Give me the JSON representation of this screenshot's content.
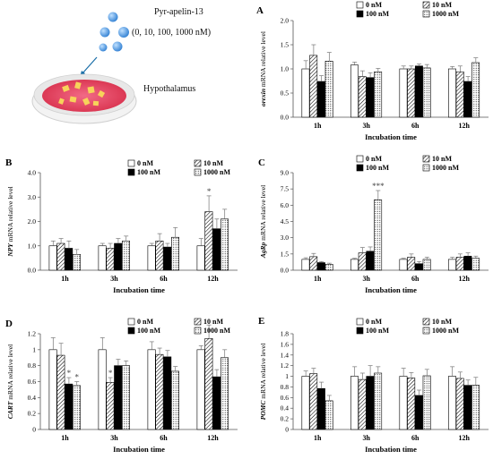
{
  "illustration": {
    "peptide": "Pyr-apelin-13",
    "doses": "(0, 10, 100, 1000 nM)",
    "tissue": "Hypothalamus"
  },
  "legend": [
    "0 nM",
    "10 nM",
    "100 nM",
    "1000 nM"
  ],
  "colors": {
    "bar0": "#ffffff",
    "bar10": "hatch",
    "bar100": "#000000",
    "bar1000": "dotted",
    "sphere": "#5aa2e0",
    "dish": "#e64b6b"
  },
  "chart_data": [
    {
      "panel": "A",
      "type": "bar",
      "gene": "orexin",
      "ylabel_rest": " mRNA relative  level",
      "xlabel": "Incubation time",
      "categories": [
        "1h",
        "3h",
        "6h",
        "12h"
      ],
      "ylim": [
        0,
        2.0
      ],
      "yticks": [
        "0.0",
        "0.5",
        "1.0",
        "1.5",
        "2.0"
      ],
      "series": [
        {
          "name": "0 nM",
          "values": [
            1.0,
            1.08,
            1.0,
            1.0
          ],
          "errors": [
            0.17,
            0.06,
            0.06,
            0.05
          ]
        },
        {
          "name": "10 nM",
          "values": [
            1.28,
            0.84,
            1.0,
            0.94
          ],
          "errors": [
            0.22,
            0.12,
            0.06,
            0.12
          ]
        },
        {
          "name": "100 nM",
          "values": [
            0.74,
            0.82,
            1.06,
            0.74
          ],
          "errors": [
            0.12,
            0.1,
            0.04,
            0.1
          ]
        },
        {
          "name": "1000 nM",
          "values": [
            1.16,
            0.94,
            1.02,
            1.13
          ],
          "errors": [
            0.18,
            0.07,
            0.07,
            0.1
          ]
        }
      ],
      "annotations": []
    },
    {
      "panel": "B",
      "type": "bar",
      "gene": "NPY",
      "ylabel_rest": " mRNA relative  level",
      "xlabel": "Incubation time",
      "categories": [
        "1h",
        "3h",
        "6h",
        "12h"
      ],
      "ylim": [
        0,
        4.0
      ],
      "yticks": [
        "0.0",
        "1.0",
        "2.0",
        "3.0",
        "4.0"
      ],
      "series": [
        {
          "name": "0 nM",
          "values": [
            1.0,
            1.0,
            1.0,
            1.0
          ],
          "errors": [
            0.2,
            0.1,
            0.1,
            0.3
          ]
        },
        {
          "name": "10 nM",
          "values": [
            1.1,
            0.9,
            1.2,
            2.4
          ],
          "errors": [
            0.2,
            0.2,
            0.3,
            0.65
          ]
        },
        {
          "name": "100 nM",
          "values": [
            0.9,
            1.1,
            0.95,
            1.7
          ],
          "errors": [
            0.3,
            0.2,
            0.15,
            0.4
          ]
        },
        {
          "name": "1000 nM",
          "values": [
            0.65,
            1.2,
            1.35,
            2.1
          ],
          "errors": [
            0.2,
            0.2,
            0.4,
            0.4
          ]
        }
      ],
      "annotations": [
        {
          "category": "12h",
          "series": "10 nM",
          "text": "*"
        }
      ]
    },
    {
      "panel": "C",
      "type": "bar",
      "gene": "AgRp",
      "ylabel_rest": " mRNA relative  level",
      "xlabel": "Incubation time",
      "categories": [
        "1h",
        "3h",
        "6h",
        "12h"
      ],
      "ylim": [
        0,
        9.0
      ],
      "yticks": [
        "0.0",
        "1.5",
        "3.0",
        "4.5",
        "6.0",
        "7.5",
        "9.0"
      ],
      "series": [
        {
          "name": "0 nM",
          "values": [
            1.0,
            1.0,
            1.0,
            1.0
          ],
          "errors": [
            0.15,
            0.1,
            0.1,
            0.2
          ]
        },
        {
          "name": "10 nM",
          "values": [
            1.25,
            1.6,
            1.2,
            1.2
          ],
          "errors": [
            0.3,
            0.5,
            0.3,
            0.3
          ]
        },
        {
          "name": "100 nM",
          "values": [
            0.7,
            1.75,
            0.6,
            1.3
          ],
          "errors": [
            0.1,
            0.4,
            0.2,
            0.3
          ]
        },
        {
          "name": "1000 nM",
          "values": [
            0.55,
            6.5,
            1.0,
            1.1
          ],
          "errors": [
            0.1,
            0.85,
            0.2,
            0.2
          ]
        }
      ],
      "annotations": [
        {
          "category": "3h",
          "series": "1000 nM",
          "text": "***"
        }
      ]
    },
    {
      "panel": "D",
      "type": "bar",
      "gene": "CART",
      "ylabel_rest": " mRNA relative  level",
      "xlabel": "Incubation time",
      "categories": [
        "1h",
        "3h",
        "6h",
        "12h"
      ],
      "ylim": [
        0,
        1.2
      ],
      "yticks": [
        "0",
        "0.2",
        "0.4",
        "0.6",
        "0.8",
        "1",
        "1.2"
      ],
      "series": [
        {
          "name": "0 nM",
          "values": [
            1.0,
            1.0,
            1.0,
            1.0
          ],
          "errors": [
            0.15,
            0.15,
            0.1,
            0.05
          ]
        },
        {
          "name": "10 nM",
          "values": [
            0.93,
            0.59,
            0.94,
            1.14
          ],
          "errors": [
            0.15,
            0.06,
            0.08,
            0.17
          ]
        },
        {
          "name": "100 nM",
          "values": [
            0.57,
            0.8,
            0.91,
            0.66
          ],
          "errors": [
            0.08,
            0.08,
            0.08,
            0.09
          ]
        },
        {
          "name": "1000 nM",
          "values": [
            0.55,
            0.8,
            0.73,
            0.9
          ],
          "errors": [
            0.05,
            0.06,
            0.06,
            0.1
          ]
        }
      ],
      "annotations": [
        {
          "category": "1h",
          "series": "100 nM",
          "text": "*"
        },
        {
          "category": "1h",
          "series": "1000 nM",
          "text": "*"
        },
        {
          "category": "3h",
          "series": "10 nM",
          "text": "*"
        }
      ]
    },
    {
      "panel": "E",
      "type": "bar",
      "gene": "POMC",
      "ylabel_rest": " mRNA relative  level",
      "xlabel": "Incubation time",
      "categories": [
        "1h",
        "3h",
        "6h",
        "12h"
      ],
      "ylim": [
        0,
        1.8
      ],
      "yticks": [
        "0",
        "0.2",
        "0.4",
        "0.6",
        "0.8",
        "1",
        "1.2",
        "1.4",
        "1.6",
        "1.8"
      ],
      "series": [
        {
          "name": "0 nM",
          "values": [
            1.0,
            1.0,
            1.0,
            1.0
          ],
          "errors": [
            0.1,
            0.18,
            0.15,
            0.18
          ]
        },
        {
          "name": "10 nM",
          "values": [
            1.05,
            0.94,
            0.97,
            0.96
          ],
          "errors": [
            0.1,
            0.12,
            0.1,
            0.12
          ]
        },
        {
          "name": "100 nM",
          "values": [
            0.77,
            1.0,
            0.64,
            0.83
          ],
          "errors": [
            0.12,
            0.2,
            0.1,
            0.1
          ]
        },
        {
          "name": "1000 nM",
          "values": [
            0.54,
            1.06,
            1.01,
            0.83
          ],
          "errors": [
            0.1,
            0.12,
            0.12,
            0.15
          ]
        }
      ],
      "annotations": []
    }
  ]
}
